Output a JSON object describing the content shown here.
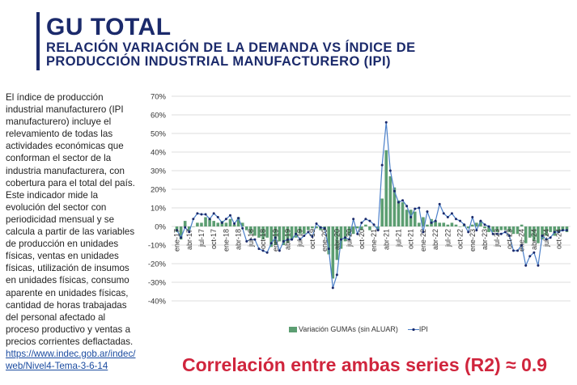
{
  "header": {
    "title": "GU TOTAL",
    "subtitle": "RELACIÓN VARIACIÓN DE LA DEMANDA VS ÍNDICE DE PRODUCCIÓN INDUSTRIAL MANUFACTURERO (IPI)"
  },
  "description": {
    "p1": "El índice de producción industrial manufacturero (IPI manufacturero) incluye el relevamiento de todas las actividades económicas que conforman el sector de la industria manufacturera, con cobertura para el total del país.",
    "p2": "Este indicador mide la evolución del sector con periodicidad mensual y se calcula a partir de las variables de producción en unidades físicas, ventas en unidades físicas, utilización de insumos en unidades físicas, consumo aparente en unidades físicas, cantidad de horas trabajadas del personal afectado al proceso productivo y ventas a precios corrientes deflactadas.",
    "link": "https://www.indec.gob.ar/indec/web/Nivel4-Tema-3-6-14"
  },
  "correlation": "Correlación entre ambas series (R2) ≈ 0.9",
  "chart_data": {
    "type": "bar+line",
    "ylim": [
      -40,
      70
    ],
    "yticks": [
      "70%",
      "60%",
      "50%",
      "40%",
      "30%",
      "20%",
      "10%",
      "0%",
      "-10%",
      "-20%",
      "-30%",
      "-40%"
    ],
    "grid": true,
    "legend_position": "bottom",
    "xtick_labels": [
      "ene-17",
      "abr-17",
      "jul-17",
      "oct-17",
      "ene-18",
      "abr-18",
      "jul-18",
      "oct-18",
      "ene-19",
      "abr-19",
      "jul-19",
      "oct-19",
      "ene-20",
      "abr-20",
      "jul-20",
      "oct-20",
      "ene-21",
      "abr-21",
      "jul-21",
      "oct-21",
      "ene-22",
      "abr-22",
      "jul-22",
      "oct-22",
      "ene-23",
      "abr-23",
      "jul-23",
      "oct-23",
      "ene-24",
      "abr-24",
      "jul-24",
      "oct-24"
    ],
    "x_start": "ene-17",
    "x_end": "dic-24",
    "series": [
      {
        "name": "Variación GUMAs (sin ALUAR)",
        "type": "bar",
        "color": "#5c9e72",
        "values": [
          -3,
          -7,
          3,
          -2,
          0,
          2,
          2,
          5,
          4,
          3,
          2,
          3,
          2,
          4,
          1,
          5,
          2,
          -2,
          -4,
          -5,
          -6,
          -7,
          -6,
          -11,
          -10,
          -8,
          -10,
          -9,
          -7,
          -6,
          -4,
          -4,
          -2,
          -1,
          -1,
          -2,
          -2,
          -15,
          -28,
          -18,
          -12,
          -8,
          -5,
          -4,
          -1,
          -2,
          1,
          -2,
          0,
          -2,
          15,
          41,
          27,
          21,
          14,
          13,
          9,
          9,
          8,
          2,
          5,
          1,
          4,
          3,
          2,
          2,
          1,
          2,
          1,
          0,
          1,
          -1,
          1,
          2,
          3,
          -1,
          -3,
          -3,
          -3,
          -2,
          -2,
          -3,
          -4,
          -4,
          1,
          -9,
          -6,
          -8,
          -9,
          -7,
          -5,
          -3,
          -5,
          -3,
          -2,
          -3
        ]
      },
      {
        "name": "IPI",
        "type": "line",
        "color": "#4a7fc9",
        "marker_color": "#1b2a6b",
        "values": [
          -2,
          -6,
          -0.5,
          -3,
          4,
          7,
          6.5,
          6.5,
          4,
          7,
          5,
          2,
          4,
          6,
          1.5,
          4.5,
          -1,
          -8,
          -7,
          -7,
          -12,
          -13,
          -14,
          -9,
          -6,
          -13,
          -8,
          -7,
          -7,
          -4,
          -7,
          -5,
          -3,
          -5.5,
          1.5,
          -0.5,
          -1,
          -12,
          -33,
          -26,
          -7,
          -6,
          -7,
          4,
          -4,
          2,
          4,
          3,
          1,
          -2,
          33,
          56,
          30,
          19,
          13,
          14,
          11,
          5,
          9.5,
          10,
          -3,
          8,
          2,
          3,
          12,
          7,
          5,
          7,
          4,
          3,
          1,
          -3,
          5,
          -2,
          3,
          1,
          0,
          -4,
          -4,
          -4,
          -3,
          -5,
          -13,
          -13,
          -10,
          -21,
          -16,
          -14,
          -21,
          -5,
          -7,
          -6,
          -3,
          -3,
          -2,
          -2
        ]
      }
    ]
  }
}
